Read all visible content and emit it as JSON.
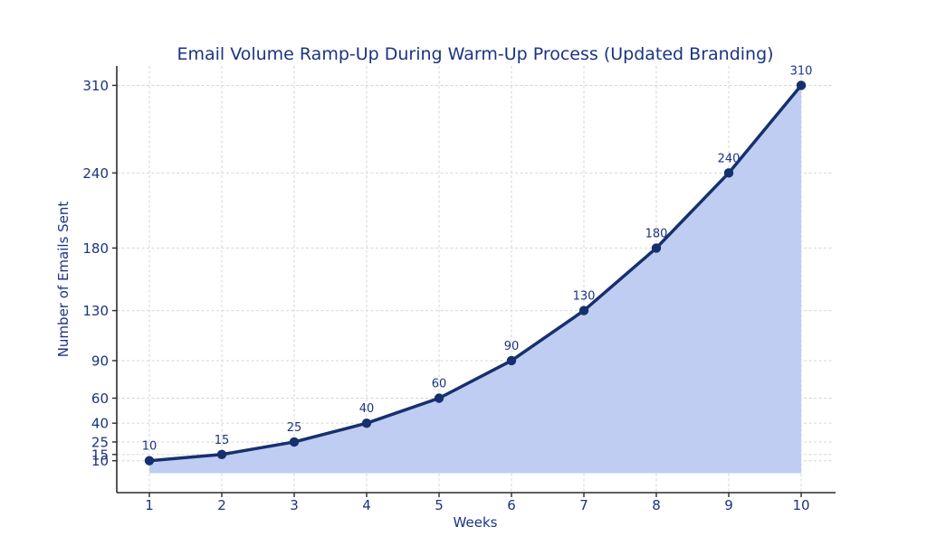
{
  "figure": {
    "background_color": "#ffffff"
  },
  "chart_data": {
    "type": "area",
    "title": "Email Volume Ramp-Up During Warm-Up Process (Updated Branding)",
    "xlabel": "Weeks",
    "ylabel": "Number of Emails Sent",
    "x": [
      1,
      2,
      3,
      4,
      5,
      6,
      7,
      8,
      9,
      10
    ],
    "values": [
      10,
      15,
      25,
      40,
      60,
      90,
      130,
      180,
      240,
      310
    ],
    "point_labels": [
      "10",
      "15",
      "25",
      "40",
      "60",
      "90",
      "130",
      "180",
      "240",
      "310"
    ],
    "xticks": [
      1,
      2,
      3,
      4,
      5,
      6,
      7,
      8,
      9,
      10
    ],
    "yticks": [
      10,
      15,
      25,
      40,
      60,
      90,
      130,
      180,
      240,
      310
    ],
    "xlim": [
      0.55,
      10.45
    ],
    "ylim": [
      -15.5,
      325.5
    ],
    "fill_baseline": 0,
    "grid": true,
    "grid_style": "dashed",
    "legend": null,
    "marker": "circle",
    "colors": {
      "line": "#16306f",
      "marker": "#16306f",
      "fill": "#bfcdf2",
      "text": "#1b3482",
      "tick_label": "#1b3482",
      "grid": "#d6d6d6",
      "spine": "#2b2b2b",
      "tick_mark": "#2b2b2b"
    }
  }
}
